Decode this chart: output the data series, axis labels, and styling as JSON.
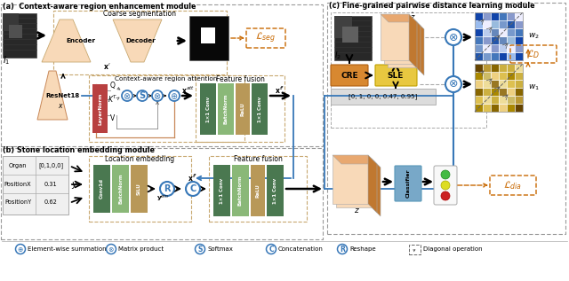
{
  "bg_color": "#ffffff",
  "fig_width": 6.4,
  "fig_height": 3.17,
  "sections": {
    "a": "(a)  Context-aware region enhancement module",
    "b": "(b) Stone location embedding module",
    "c": "(c) Fine-grained pairwise distance learning module"
  },
  "colors": {
    "orange_pale": "#F8D9B8",
    "orange_mid": "#E8A870",
    "orange_dark": "#C07830",
    "red_block": "#B84040",
    "green1": "#4A7850",
    "green2": "#8AB878",
    "tan": "#B89858",
    "blue": "#3878B8",
    "gold1": "#B88820",
    "gold2": "#D8A830",
    "gold3": "#F0D070",
    "cre": "#D88830",
    "sle": "#E8C840",
    "classifier": "#78A8C8",
    "loss": "#C86800",
    "dash_border": "#888888",
    "table_bg": "#F0F0F0"
  },
  "blue_matrix": [
    [
      "#2255AA",
      "#7799CC",
      "#4477BB",
      "#1144AA",
      "#99BBEE",
      "#1144AA"
    ],
    [
      "#7799CC",
      "#EEEEFF",
      "#8899CC",
      "#BBCCEE",
      "#EEEEFF",
      "#8899CC"
    ],
    [
      "#4477BB",
      "#8899CC",
      "#2255AA",
      "#6688BB",
      "#99BBDD",
      "#1144AA"
    ],
    [
      "#1144AA",
      "#BBCCEE",
      "#6688BB",
      "#EEEEFF",
      "#7799CC",
      "#4477BB"
    ],
    [
      "#99BBEE",
      "#EEEEFF",
      "#99BBDD",
      "#7799CC",
      "#2255AA",
      "#8899CC"
    ],
    [
      "#1144AA",
      "#8899CC",
      "#1144AA",
      "#4477BB",
      "#8899CC",
      "#EEEEFF"
    ]
  ],
  "gold_matrix": [
    [
      "#AA8800",
      "#DDC050",
      "#886600",
      "#EED080",
      "#AA8800",
      "#664400"
    ],
    [
      "#DDC050",
      "#EEDD99",
      "#CCB040",
      "#EEDD99",
      "#CCBB66",
      "#BB9933"
    ],
    [
      "#886600",
      "#CCB040",
      "#AA8800",
      "#997722",
      "#EED080",
      "#886600"
    ],
    [
      "#EED080",
      "#EEDD99",
      "#997722",
      "#EEDD99",
      "#DDC050",
      "#CCB040"
    ],
    [
      "#AA8800",
      "#CCBB66",
      "#EED080",
      "#DDC050",
      "#AA8800",
      "#CCB040"
    ],
    [
      "#664400",
      "#BB9933",
      "#886600",
      "#CCB040",
      "#CCB040",
      "#EEDD99"
    ]
  ]
}
